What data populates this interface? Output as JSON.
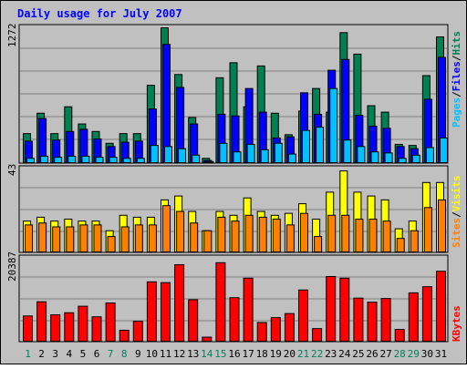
{
  "chart_data": [
    {
      "type": "bar",
      "title": "Daily usage for July 2007",
      "ymax_label": "1272",
      "ylim": [
        0,
        1272
      ],
      "categories": [
        "1",
        "2",
        "3",
        "4",
        "5",
        "6",
        "7",
        "8",
        "9",
        "10",
        "11",
        "12",
        "13",
        "14",
        "15",
        "16",
        "17",
        "18",
        "19",
        "20",
        "21",
        "22",
        "23",
        "24",
        "25",
        "26",
        "27",
        "28",
        "29",
        "30",
        "31"
      ],
      "weekend_days": [
        "1",
        "7",
        "8",
        "14",
        "15",
        "21",
        "22",
        "28",
        "29"
      ],
      "legend_labels": [
        "Pages",
        "Files",
        "Hits"
      ],
      "series": [
        {
          "name": "Hits",
          "color": "#007f53",
          "values": [
            270,
            460,
            270,
            520,
            360,
            290,
            180,
            270,
            270,
            720,
            1255,
            820,
            420,
            40,
            790,
            930,
            520,
            900,
            460,
            260,
            480,
            690,
            470,
            1210,
            1010,
            530,
            470,
            170,
            160,
            810,
            1170
          ]
        },
        {
          "name": "Files",
          "color": "#0000ff",
          "values": [
            200,
            410,
            210,
            290,
            310,
            220,
            150,
            190,
            200,
            500,
            1100,
            700,
            360,
            20,
            450,
            435,
            690,
            470,
            230,
            240,
            650,
            450,
            860,
            960,
            440,
            340,
            320,
            150,
            130,
            590,
            980
          ]
        },
        {
          "name": "Pages",
          "color": "#00c0ff",
          "values": [
            40,
            60,
            50,
            60,
            60,
            50,
            50,
            40,
            40,
            160,
            150,
            130,
            70,
            10,
            180,
            100,
            170,
            120,
            180,
            80,
            300,
            330,
            690,
            210,
            150,
            100,
            90,
            40,
            70,
            140,
            230
          ]
        }
      ]
    },
    {
      "type": "bar",
      "ymax_label": "43",
      "ylim": [
        0,
        43
      ],
      "legend_labels": [
        "Sites",
        "Visits"
      ],
      "series": [
        {
          "name": "Visits",
          "color": "#ffff00",
          "values": [
            16,
            18,
            16,
            17,
            16,
            16,
            11,
            19,
            18,
            18,
            27,
            29,
            21,
            11,
            21,
            19,
            28,
            21,
            19,
            20,
            25,
            17,
            31,
            42,
            31,
            29,
            27,
            12,
            16,
            36,
            36
          ]
        },
        {
          "name": "Sites",
          "color": "#ff8000",
          "values": [
            14,
            15,
            13,
            13,
            14,
            14,
            8,
            13,
            14,
            14,
            24,
            21,
            15,
            11,
            18,
            16,
            19,
            18,
            17,
            14,
            20,
            8,
            19,
            19,
            17,
            17,
            16,
            7,
            11,
            23,
            27
          ]
        }
      ]
    },
    {
      "type": "bar",
      "ymax_label": "20387",
      "ylim": [
        0,
        20387
      ],
      "legend_labels": [
        "KBytes"
      ],
      "series": [
        {
          "name": "KBytes",
          "color": "#ff0000",
          "values": [
            6200,
            9700,
            6500,
            7000,
            8600,
            6000,
            9400,
            2700,
            4900,
            14600,
            14400,
            18800,
            10200,
            1000,
            19300,
            10700,
            15500,
            4600,
            5800,
            6800,
            12600,
            3100,
            15900,
            15500,
            10600,
            9600,
            10500,
            2900,
            11900,
            13400,
            17200
          ]
        }
      ]
    }
  ]
}
